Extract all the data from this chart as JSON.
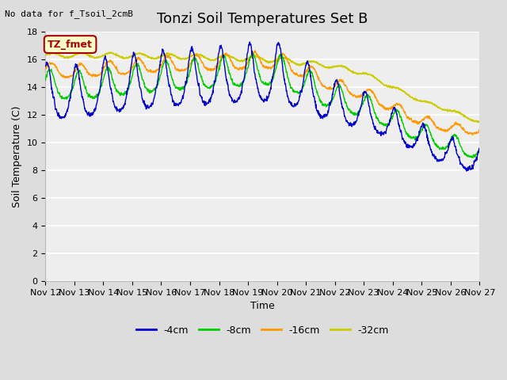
{
  "title": "Tonzi Soil Temperatures Set B",
  "topleft_note": "No data for f_Tsoil_2cmB",
  "xlabel": "Time",
  "ylabel": "Soil Temperature (C)",
  "ylim": [
    0,
    18
  ],
  "yticks": [
    0,
    2,
    4,
    6,
    8,
    10,
    12,
    14,
    16,
    18
  ],
  "xlabels": [
    "Nov 12",
    "Nov 13",
    "Nov 14",
    "Nov 15",
    "Nov 16",
    "Nov 17",
    "Nov 18",
    "Nov 19",
    "Nov 20",
    "Nov 21",
    "Nov 22",
    "Nov 23",
    "Nov 24",
    "Nov 25",
    "Nov 26",
    "Nov 27"
  ],
  "legend_box_label": "TZ_fmet",
  "legend_box_facecolor": "#ffffcc",
  "legend_box_edgecolor": "#aa0000",
  "legend_box_textcolor": "#aa0000",
  "series_colors": [
    "#0000cc",
    "#00cc00",
    "#ff9900",
    "#cccc00"
  ],
  "series_labels": [
    "-4cm",
    "-8cm",
    "-16cm",
    "-32cm"
  ],
  "bg_color": "#dddddd",
  "plot_bg_color": "#eeeeee",
  "grid_color": "#ffffff",
  "title_fontsize": 13,
  "label_fontsize": 9,
  "tick_fontsize": 8
}
